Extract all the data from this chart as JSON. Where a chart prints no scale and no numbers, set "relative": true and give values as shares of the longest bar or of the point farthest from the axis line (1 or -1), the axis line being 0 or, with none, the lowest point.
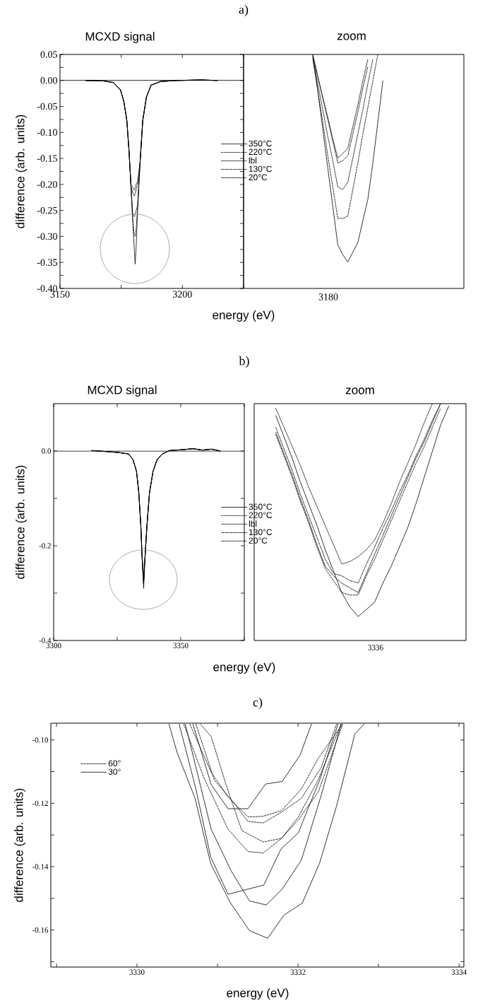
{
  "chart_data": [
    {
      "type": "line",
      "title": "MCXD signal",
      "xlabel": "energy (eV)",
      "ylabel": "difference (arb. units)",
      "annotations": [
        "a)"
      ],
      "legend": "right",
      "xlim": [
        3150,
        3225
      ],
      "ylim": [
        -0.4,
        0.05
      ],
      "xticks": [
        3150,
        {
          "value": 3175,
          "label": null
        },
        3200,
        {
          "value": 3225,
          "label": null
        }
      ],
      "yticks": [
        {
          "value": 0.05,
          "label": "0.05"
        },
        {
          "value": 0.025,
          "label": null
        },
        {
          "value": 0,
          "label": "0.00"
        },
        {
          "value": -0.025,
          "label": null
        },
        {
          "value": -0.05,
          "label": "-0.05"
        },
        {
          "value": -0.075,
          "label": null
        },
        {
          "value": -0.1,
          "label": "-0.10"
        },
        {
          "value": -0.125,
          "label": null
        },
        {
          "value": -0.15,
          "label": "-0.15"
        },
        {
          "value": -0.175,
          "label": null
        },
        {
          "value": -0.2,
          "label": "-0.20"
        },
        {
          "value": -0.225,
          "label": null
        },
        {
          "value": -0.25,
          "label": "-0.25"
        },
        {
          "value": -0.275,
          "label": null
        },
        {
          "value": -0.3,
          "label": "-0.30"
        },
        {
          "value": -0.325,
          "label": null
        },
        {
          "value": -0.35,
          "label": "-0.35"
        },
        {
          "value": -0.375,
          "label": null
        },
        {
          "value": -0.4,
          "label": "-0.40"
        }
      ],
      "ref_lines": [
        {
          "axis": "y",
          "value": 0
        }
      ],
      "x": [
        3160.6,
        3167.9,
        3171.8,
        3174.7,
        3176.1,
        3177.3,
        3178.2,
        3179.0,
        3179.7,
        3180.3,
        3180.7,
        3181.1,
        3181.7,
        3182.7,
        3183.8,
        3185.3,
        3187.2,
        3191.1,
        3197.9,
        3207.5,
        3214.3
      ],
      "series": [
        {
          "name": "350°C",
          "color": "#000000",
          "line_style": "solid",
          "values": [
            0,
            -0.001,
            -0.004,
            -0.018,
            -0.041,
            -0.077,
            -0.136,
            -0.204,
            -0.271,
            -0.321,
            -0.353,
            -0.321,
            -0.249,
            -0.158,
            -0.077,
            -0.032,
            -0.009,
            -0.002,
            0,
            0.001,
            0
          ]
        },
        {
          "name": "220°C",
          "color": "#000000",
          "line_style": "dashed",
          "values": [
            0,
            -0.001,
            -0.004,
            -0.018,
            -0.041,
            -0.077,
            -0.136,
            -0.204,
            -0.265,
            -0.295,
            -0.3,
            -0.285,
            -0.245,
            -0.158,
            -0.077,
            -0.032,
            -0.009,
            -0.002,
            0,
            0.001,
            0
          ]
        },
        {
          "name": "lbl",
          "color": "#000000",
          "line_style": "dotted",
          "values": [
            0,
            -0.001,
            -0.004,
            -0.018,
            -0.041,
            -0.077,
            -0.136,
            -0.204,
            -0.255,
            -0.262,
            -0.258,
            -0.25,
            -0.24,
            -0.158,
            -0.077,
            -0.032,
            -0.009,
            -0.002,
            0,
            0.001,
            0
          ]
        },
        {
          "name": "130°C",
          "color": "#000000",
          "line_style": "dashdot",
          "values": [
            0,
            -0.001,
            -0.004,
            -0.018,
            -0.041,
            -0.077,
            -0.136,
            -0.204,
            -0.215,
            -0.222,
            -0.218,
            -0.21,
            -0.2,
            -0.158,
            -0.077,
            -0.032,
            -0.009,
            -0.002,
            0,
            0.001,
            0
          ]
        },
        {
          "name": "20°C",
          "color": "#000000",
          "line_style": "dashdotdot",
          "values": [
            0,
            -0.001,
            -0.004,
            -0.018,
            -0.041,
            -0.077,
            -0.136,
            -0.2,
            -0.205,
            -0.211,
            -0.208,
            -0.2,
            -0.195,
            -0.158,
            -0.077,
            -0.032,
            -0.009,
            -0.002,
            0,
            0.001,
            0
          ]
        }
      ]
    },
    {
      "type": "line",
      "title": "zoom",
      "relative": true,
      "annotations": [
        "3180"
      ],
      "categories": [
        null,
        null,
        null,
        null,
        null,
        null,
        null,
        null,
        null,
        null,
        null,
        null,
        null,
        null,
        null
      ],
      "series": [
        {
          "color": "#000000",
          "line_style": "solid",
          "values": [
            1,
            0.845,
            0.68,
            0.515,
            0.35,
            0.186,
            0.144,
            0.113,
            0.155,
            0.196,
            0.289,
            0.381,
            0.536,
            0.711,
            0.887
          ]
        },
        {
          "color": "#000000",
          "line_style": "dashed",
          "values": [
            0.979,
            0.845,
            0.711,
            0.567,
            0.433,
            0.299,
            0.299,
            0.309,
            0.423,
            0.536,
            0.66,
            0.773,
            0.887,
            1,
            null
          ]
        },
        {
          "color": "#000000",
          "line_style": "dotted",
          "values": [
            0.99,
            0.876,
            0.763,
            0.649,
            0.546,
            0.433,
            0.423,
            0.454,
            0.557,
            0.66,
            0.763,
            0.876,
            0.979,
            null,
            null
          ]
        },
        {
          "color": "#000000",
          "line_style": "dashdot",
          "values": [
            0.99,
            0.907,
            0.814,
            0.722,
            0.629,
            0.536,
            0.546,
            0.567,
            0.66,
            0.753,
            0.856,
            0.948,
            null,
            null,
            null
          ]
        },
        {
          "color": "#000000",
          "line_style": "dashdotdot",
          "values": [
            1,
            0.907,
            0.814,
            0.732,
            0.639,
            0.557,
            0.577,
            0.598,
            0.691,
            0.784,
            0.887,
            0.979,
            null,
            null,
            null
          ]
        }
      ]
    },
    {
      "type": "line",
      "title": "MCXD signal",
      "xlabel": "energy (eV)",
      "ylabel": "difference (arb. units)",
      "annotations": [
        "b)"
      ],
      "legend": "right",
      "xlim": [
        3300,
        3375
      ],
      "ylim": [
        -0.4,
        0.1
      ],
      "xticks": [
        3300,
        {
          "value": 3325,
          "label": null
        },
        3350,
        {
          "value": 3375,
          "label": null
        }
      ],
      "yticks": [
        {
          "value": -0.4,
          "label": "-0.4"
        },
        {
          "value": -0.3,
          "label": null
        },
        {
          "value": -0.2,
          "label": "-0.2"
        },
        {
          "value": -0.1,
          "label": null
        },
        {
          "value": 0,
          "label": "0.0"
        }
      ],
      "ref_lines": [
        {
          "axis": "y",
          "value": 0
        }
      ],
      "x": [
        3315.0,
        3320.6,
        3325.2,
        3329.4,
        3331.2,
        3332.6,
        3333.5,
        3334.3,
        3334.8,
        3335.4,
        3335.9,
        3336.7,
        3337.7,
        3339.1,
        3340.7,
        3342.8,
        3345.6,
        3351.1,
        3354.8,
        3358.5,
        3362.2,
        3365.5
      ],
      "series": [
        {
          "name": "350°C",
          "color": "#000000",
          "line_style": "solid",
          "values": [
            0.001,
            -0.001,
            -0.003,
            -0.006,
            -0.018,
            -0.043,
            -0.088,
            -0.158,
            -0.227,
            -0.29,
            -0.232,
            -0.158,
            -0.088,
            -0.043,
            -0.018,
            -0.006,
            0.001,
            0.003,
            0.005,
            0.002,
            0.004,
            0
          ]
        },
        {
          "name": "220°C",
          "color": "#000000",
          "line_style": "dashed",
          "values": [
            0.001,
            -0.001,
            -0.003,
            -0.006,
            -0.018,
            -0.043,
            -0.088,
            -0.158,
            -0.225,
            -0.28,
            -0.228,
            -0.158,
            -0.088,
            -0.043,
            -0.018,
            -0.006,
            0.001,
            0.003,
            0.005,
            0.002,
            0.004,
            0
          ]
        },
        {
          "name": "lbl",
          "color": "#000000",
          "line_style": "dotted",
          "values": [
            0.001,
            -0.001,
            -0.003,
            -0.006,
            -0.018,
            -0.043,
            -0.088,
            -0.158,
            -0.222,
            -0.265,
            -0.225,
            -0.158,
            -0.088,
            -0.043,
            -0.018,
            -0.006,
            0.001,
            0.003,
            0.005,
            0.002,
            0.004,
            0
          ]
        },
        {
          "name": "130°C",
          "color": "#000000",
          "line_style": "dashdot",
          "values": [
            0.001,
            -0.001,
            -0.003,
            -0.006,
            -0.018,
            -0.043,
            -0.088,
            -0.158,
            -0.224,
            -0.275,
            -0.227,
            -0.158,
            -0.088,
            -0.043,
            -0.018,
            -0.006,
            0.001,
            0.003,
            0.005,
            0.002,
            0.004,
            0
          ]
        },
        {
          "name": "20°C",
          "color": "#000000",
          "line_style": "dashdotdot",
          "values": [
            0.001,
            -0.001,
            -0.003,
            -0.006,
            -0.018,
            -0.043,
            -0.088,
            -0.158,
            -0.225,
            -0.28,
            -0.228,
            -0.158,
            -0.088,
            -0.043,
            -0.018,
            -0.006,
            0.001,
            0.003,
            0.005,
            0.002,
            0.004,
            0
          ]
        }
      ]
    },
    {
      "type": "line",
      "title": "zoom",
      "relative": true,
      "annotations": [
        "3336"
      ],
      "categories": [
        null,
        null,
        null,
        null,
        null,
        null,
        null,
        null,
        null,
        null,
        null,
        null,
        null,
        null,
        null,
        null,
        null,
        null,
        null,
        null,
        null,
        null
      ],
      "series": [
        {
          "color": "#000000",
          "line_style": "solid",
          "values": [
            0.949,
            0.859,
            0.768,
            0.667,
            0.576,
            0.485,
            0.384,
            0.293,
            0.202,
            0.141,
            0.101,
            0.131,
            0.162,
            0.242,
            0.313,
            0.394,
            0.475,
            0.576,
            0.687,
            0.798,
            0.909,
            0.99
          ]
        },
        {
          "color": "#000000",
          "line_style": "dashed",
          "values": [
            0.869,
            0.778,
            0.687,
            0.586,
            0.495,
            0.394,
            0.303,
            0.253,
            0.202,
            0.192,
            0.192,
            0.273,
            0.343,
            0.424,
            0.505,
            0.586,
            0.667,
            0.747,
            0.818,
            0.899,
            0.98,
            null
          ]
        },
        {
          "color": "#000000",
          "line_style": "dotted",
          "values": [
            0.98,
            0.899,
            0.818,
            0.737,
            0.646,
            0.566,
            0.485,
            0.404,
            0.323,
            0.333,
            0.354,
            0.384,
            0.424,
            0.495,
            0.576,
            0.667,
            0.747,
            0.828,
            0.919,
            1,
            null,
            null
          ]
        },
        {
          "color": "#000000",
          "line_style": "dashdot",
          "values": [
            0.899,
            0.808,
            0.717,
            0.616,
            0.525,
            0.434,
            0.343,
            0.283,
            0.273,
            0.253,
            0.242,
            0.323,
            0.394,
            0.475,
            0.545,
            0.626,
            0.697,
            0.778,
            0.848,
            0.929,
            1,
            null
          ]
        },
        {
          "color": "#000000",
          "line_style": "dashdotdot",
          "values": [
            0.879,
            0.788,
            0.697,
            0.596,
            0.505,
            0.404,
            0.313,
            0.273,
            0.242,
            0.222,
            0.202,
            0.283,
            0.364,
            0.444,
            0.525,
            0.606,
            0.687,
            0.768,
            0.838,
            0.919,
            1,
            null
          ]
        }
      ]
    },
    {
      "type": "line",
      "xlabel": "energy (eV)",
      "ylabel": "difference (arb. units)",
      "annotations": [
        "c)"
      ],
      "legend": "top left",
      "xlim": [
        3328.93,
        3334.06
      ],
      "ylim": [
        -0.1717,
        -0.0947
      ],
      "xticks": [
        {
          "value": 3329,
          "label": null
        },
        3330,
        {
          "value": 3331,
          "label": null
        },
        3332,
        {
          "value": 3333,
          "label": null
        },
        3334
      ],
      "yticks": [
        {
          "value": -0.17,
          "label": null
        },
        {
          "value": -0.16,
          "label": "-0.16"
        },
        {
          "value": -0.15,
          "label": null
        },
        {
          "value": -0.14,
          "label": "-0.14"
        },
        {
          "value": -0.13,
          "label": null
        },
        {
          "value": -0.12,
          "label": "-0.12"
        },
        {
          "value": -0.11,
          "label": null
        },
        {
          "value": -0.1,
          "label": "-0.10"
        }
      ],
      "series": [
        {
          "name": "60°",
          "color": "#000000",
          "line_style": "dashed",
          "x": [
            3330.657,
            3330.922,
            3331.131,
            3331.378,
            3331.567,
            3331.795,
            3332.042,
            3332.25,
            3332.554
          ],
          "values": [
            -0.095,
            -0.1102,
            -0.118,
            -0.1243,
            -0.1241,
            -0.1223,
            -0.1155,
            -0.1058,
            -0.095
          ]
        },
        {
          "color": "#000000",
          "line_style": "dashed",
          "x": [
            3330.732,
            3330.96,
            3331.188,
            3331.378,
            3331.567,
            3331.795,
            3332.042,
            3332.288,
            3332.478
          ],
          "values": [
            -0.095,
            -0.1126,
            -0.1194,
            -0.1257,
            -0.1262,
            -0.1228,
            -0.1184,
            -0.1087,
            -0.095
          ]
        },
        {
          "color": "#000000",
          "line_style": "dashed",
          "x": [
            3330.789,
            3330.922,
            3331.112,
            3331.302,
            3331.567,
            3331.795,
            3332.004,
            3332.25,
            3332.554
          ],
          "values": [
            -0.095,
            -0.099,
            -0.1146,
            -0.1286,
            -0.1322,
            -0.1311,
            -0.1252,
            -0.1165,
            -0.0951
          ]
        },
        {
          "color": "#000000",
          "line_style": "dashed",
          "x": [
            3330.581,
            3330.827,
            3331.131,
            3331.378,
            3331.567,
            3331.795,
            3332.004,
            3332.25,
            3332.535
          ],
          "values": [
            -0.095,
            -0.1117,
            -0.1282,
            -0.1352,
            -0.1357,
            -0.1311,
            -0.1243,
            -0.1126,
            -0.095
          ]
        },
        {
          "name": "30°",
          "color": "#000000",
          "line_style": "solid",
          "x": [
            3330.695,
            3330.922,
            3331.131,
            3331.378,
            3331.598,
            3331.803,
            3332.023,
            3332.167
          ],
          "values": [
            -0.095,
            -0.1141,
            -0.1217,
            -0.1217,
            -0.1139,
            -0.1131,
            -0.1049,
            -0.095
          ]
        },
        {
          "color": "#000000",
          "line_style": "solid",
          "x": [
            3330.524,
            3330.732,
            3330.915,
            3331.131,
            3331.575,
            3331.787,
            3332.004,
            3332.269,
            3332.497
          ],
          "values": [
            -0.095,
            -0.1155,
            -0.1369,
            -0.1487,
            -0.1458,
            -0.1345,
            -0.1293,
            -0.1126,
            -0.095
          ]
        },
        {
          "color": "#000000",
          "line_style": "solid",
          "x": [
            3330.6,
            3330.922,
            3331.169,
            3331.397,
            3331.605,
            3331.803,
            3332.042,
            3332.288,
            3332.535
          ],
          "values": [
            -0.095,
            -0.1282,
            -0.1413,
            -0.1508,
            -0.1521,
            -0.1471,
            -0.1379,
            -0.1175,
            -0.095
          ]
        },
        {
          "color": "#000000",
          "line_style": "solid",
          "x": [
            3330.398,
            3330.497,
            3330.721,
            3330.915,
            3331.157,
            3331.397,
            3331.624,
            3331.825,
            3332.053,
            3332.269,
            3332.478,
            3332.706,
            3332.82
          ],
          "values": [
            -0.095,
            -0.1039,
            -0.1184,
            -0.139,
            -0.1513,
            -0.1602,
            -0.1626,
            -0.1553,
            -0.1515,
            -0.1388,
            -0.1209,
            -0.0981,
            -0.095
          ]
        }
      ]
    }
  ]
}
